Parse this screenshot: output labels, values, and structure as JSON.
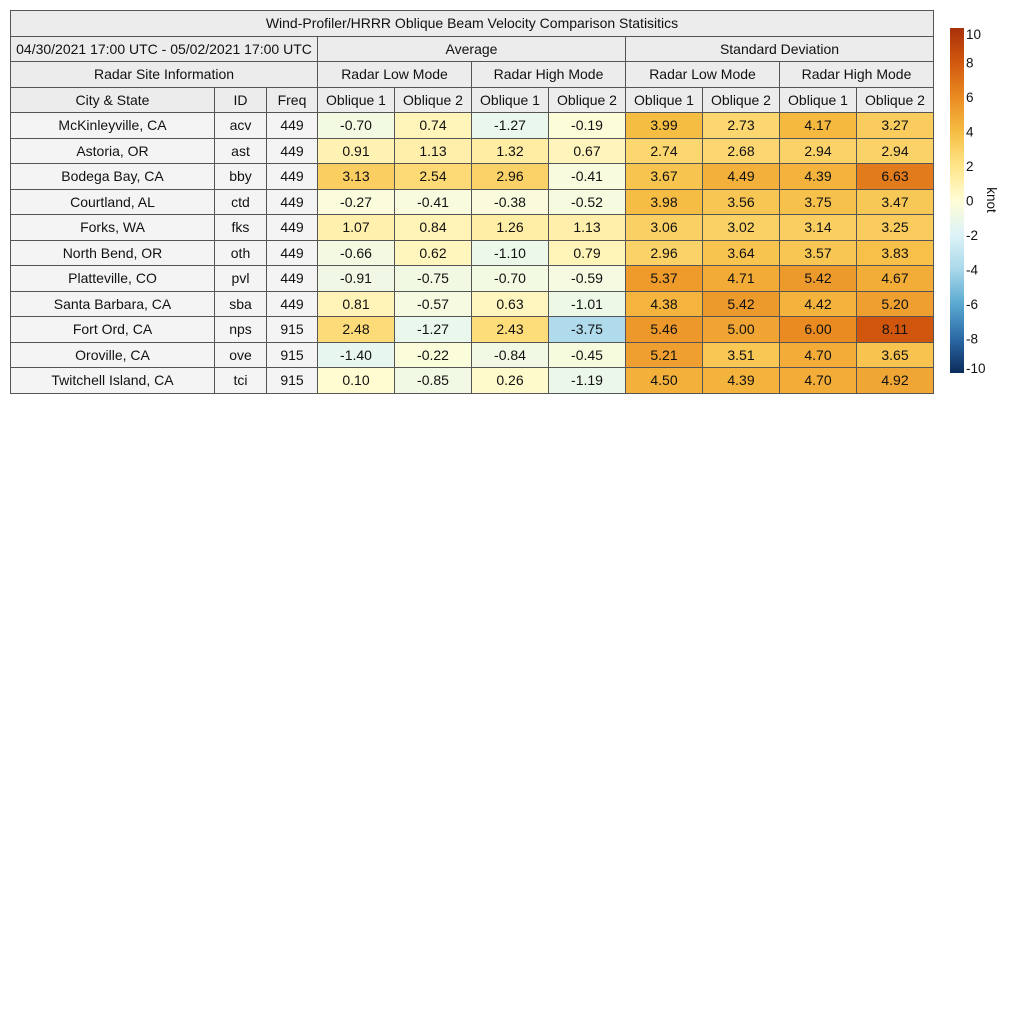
{
  "title": "Wind-Profiler/HRRR Oblique Beam Velocity Comparison Statisitics",
  "date_range": "04/30/2021 17:00 UTC - 05/02/2021 17:00 UTC",
  "group_average": "Average",
  "group_std": "Standard Deviation",
  "site_info_label": "Radar Site Information",
  "mode_low": "Radar Low Mode",
  "mode_high": "Radar High Mode",
  "col_city": "City & State",
  "col_id": "ID",
  "col_freq": "Freq",
  "beam_1": "Oblique 1",
  "beam_2": "Oblique 2",
  "colorbar_label": "knot",
  "chart_data": {
    "type": "table",
    "title": "Wind-Profiler/HRRR Oblique Beam Velocity Comparison Statisitics",
    "colorbar": {
      "label": "knot",
      "range": [
        -10,
        10
      ],
      "ticks": [
        -10,
        -8,
        -6,
        -4,
        -2,
        0,
        2,
        4,
        6,
        8,
        10
      ],
      "colors": [
        "#0b2b5a",
        "#2c6aa6",
        "#5aa9d1",
        "#a9d8ea",
        "#ddf3f8",
        "#fffdd6",
        "#ffe589",
        "#f6bd43",
        "#ea8b22",
        "#d2580e",
        "#a8300a"
      ]
    },
    "columns": [
      "Avg Low Oblique 1",
      "Avg Low Oblique 2",
      "Avg High Oblique 1",
      "Avg High Oblique 2",
      "Std Low Oblique 1",
      "Std Low Oblique 2",
      "Std High Oblique 1",
      "Std High Oblique 2"
    ],
    "rows": [
      {
        "city": "McKinleyville, CA",
        "id": "acv",
        "freq": "449",
        "values": [
          "-0.70",
          "0.74",
          "-1.27",
          "-0.19",
          "3.99",
          "2.73",
          "4.17",
          "3.27"
        ]
      },
      {
        "city": "Astoria, OR",
        "id": "ast",
        "freq": "449",
        "values": [
          "0.91",
          "1.13",
          "1.32",
          "0.67",
          "2.74",
          "2.68",
          "2.94",
          "2.94"
        ]
      },
      {
        "city": "Bodega Bay, CA",
        "id": "bby",
        "freq": "449",
        "values": [
          "3.13",
          "2.54",
          "2.96",
          "-0.41",
          "3.67",
          "4.49",
          "4.39",
          "6.63"
        ]
      },
      {
        "city": "Courtland, AL",
        "id": "ctd",
        "freq": "449",
        "values": [
          "-0.27",
          "-0.41",
          "-0.38",
          "-0.52",
          "3.98",
          "3.56",
          "3.75",
          "3.47"
        ]
      },
      {
        "city": "Forks, WA",
        "id": "fks",
        "freq": "449",
        "values": [
          "1.07",
          "0.84",
          "1.26",
          "1.13",
          "3.06",
          "3.02",
          "3.14",
          "3.25"
        ]
      },
      {
        "city": "North Bend, OR",
        "id": "oth",
        "freq": "449",
        "values": [
          "-0.66",
          "0.62",
          "-1.10",
          "0.79",
          "2.96",
          "3.64",
          "3.57",
          "3.83"
        ]
      },
      {
        "city": "Platteville, CO",
        "id": "pvl",
        "freq": "449",
        "values": [
          "-0.91",
          "-0.75",
          "-0.70",
          "-0.59",
          "5.37",
          "4.71",
          "5.42",
          "4.67"
        ]
      },
      {
        "city": "Santa Barbara, CA",
        "id": "sba",
        "freq": "449",
        "values": [
          "0.81",
          "-0.57",
          "0.63",
          "-1.01",
          "4.38",
          "5.42",
          "4.42",
          "5.20"
        ]
      },
      {
        "city": "Fort Ord, CA",
        "id": "nps",
        "freq": "915",
        "values": [
          "2.48",
          "-1.27",
          "2.43",
          "-3.75",
          "5.46",
          "5.00",
          "6.00",
          "8.11"
        ]
      },
      {
        "city": "Oroville, CA",
        "id": "ove",
        "freq": "915",
        "values": [
          "-1.40",
          "-0.22",
          "-0.84",
          "-0.45",
          "5.21",
          "3.51",
          "4.70",
          "3.65"
        ]
      },
      {
        "city": "Twitchell Island, CA",
        "id": "tci",
        "freq": "915",
        "values": [
          "0.10",
          "-0.85",
          "0.26",
          "-1.19",
          "4.50",
          "4.39",
          "4.70",
          "4.92"
        ]
      }
    ]
  }
}
